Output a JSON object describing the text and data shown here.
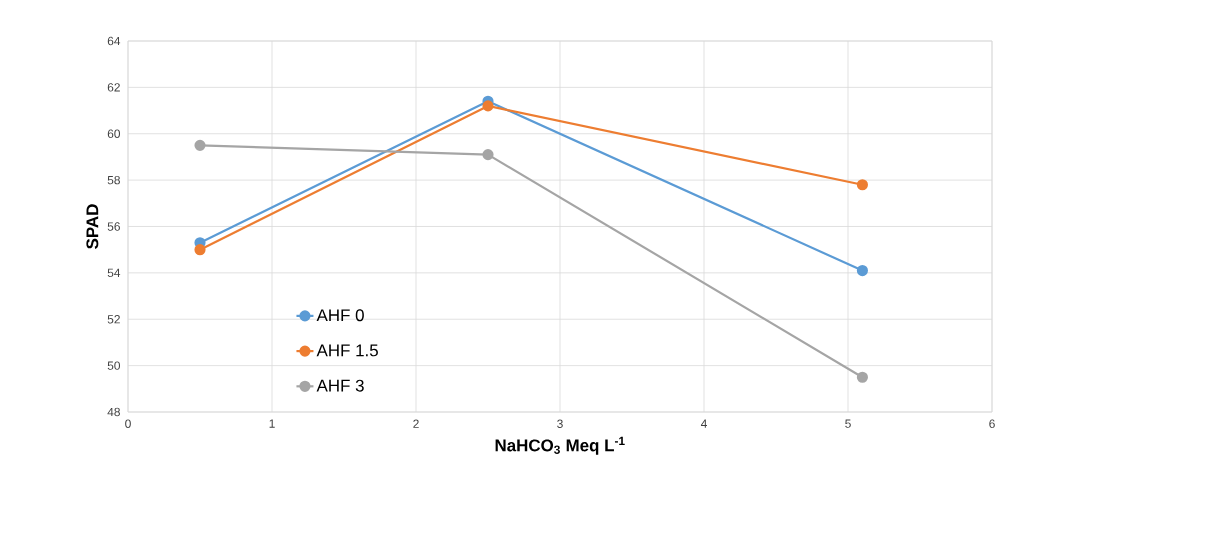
{
  "chart_data": {
    "type": "line",
    "xlabel": "NaHCO$_{3}$ Meq L$^{-1}$",
    "ylabel": "SPAD",
    "x": [
      0.5,
      2.5,
      5.1
    ],
    "series": [
      {
        "name": "AHF 0",
        "color": "#5b9bd5",
        "values": [
          55.3,
          61.4,
          54.1
        ]
      },
      {
        "name": "AHF 1.5",
        "color": "#ed7d31",
        "values": [
          55.0,
          61.2,
          57.8
        ]
      },
      {
        "name": "AHF 3",
        "color": "#a5a5a5",
        "values": [
          59.5,
          59.1,
          49.5
        ]
      }
    ],
    "xlim": [
      0,
      6
    ],
    "ylim": [
      48,
      64
    ],
    "xticks": [
      0,
      1,
      2,
      3,
      4,
      5,
      6
    ],
    "yticks": [
      48,
      50,
      52,
      54,
      56,
      58,
      60,
      62,
      64
    ],
    "grid": true,
    "legend": "bottom left",
    "marker": "circle",
    "line_style": "solid"
  }
}
